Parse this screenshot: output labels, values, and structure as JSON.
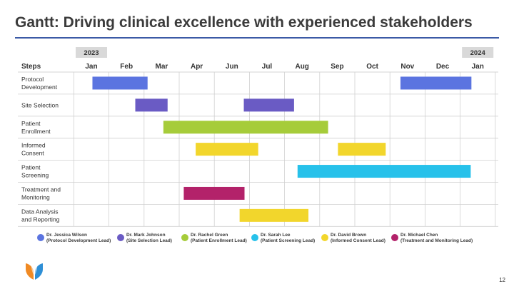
{
  "title": "Gantt: Driving clinical excellence with experienced stakeholders",
  "page_number": "12",
  "gantt": {
    "steps_header": "Steps",
    "year_labels": [
      {
        "label": "2023",
        "month_index": 0
      },
      {
        "label": "2024",
        "month_index": 11
      }
    ],
    "months": [
      "Jan",
      "Feb",
      "Mar",
      "Apr",
      "Jun",
      "Jul",
      "Aug",
      "Sep",
      "Oct",
      "Nov",
      "Dec",
      "Jan"
    ],
    "rows": [
      {
        "label": [
          "Protocol",
          "Development"
        ]
      },
      {
        "label": [
          "Site Selection"
        ]
      },
      {
        "label": [
          "Patient",
          "Enrollment"
        ]
      },
      {
        "label": [
          "Informed",
          "Consent"
        ]
      },
      {
        "label": [
          "Patient",
          "Screening"
        ]
      },
      {
        "label": [
          "Treatment and",
          "Monitoring"
        ]
      },
      {
        "label": [
          "Data Analysis",
          "and Reporting"
        ]
      }
    ],
    "bars": [
      {
        "row": 0,
        "start": 0.03,
        "end": 1.6,
        "owner": 0
      },
      {
        "row": 0,
        "start": 8.8,
        "end": 10.82,
        "owner": 0
      },
      {
        "row": 1,
        "start": 1.25,
        "end": 2.17,
        "owner": 1
      },
      {
        "row": 1,
        "start": 4.34,
        "end": 5.77,
        "owner": 1
      },
      {
        "row": 2,
        "start": 2.05,
        "end": 6.74,
        "owner": 2
      },
      {
        "row": 3,
        "start": 2.97,
        "end": 4.75,
        "owner": 4
      },
      {
        "row": 3,
        "start": 7.02,
        "end": 8.38,
        "owner": 4
      },
      {
        "row": 4,
        "start": 5.87,
        "end": 10.8,
        "owner": 3
      },
      {
        "row": 5,
        "start": 2.63,
        "end": 4.36,
        "owner": 5
      },
      {
        "row": 6,
        "start": 4.22,
        "end": 6.18,
        "owner": 4
      }
    ]
  },
  "legend": [
    {
      "name": "Dr. Jessica Wilson",
      "role": "(Protocol Development Lead)",
      "color": "#5b74e0"
    },
    {
      "name": "Dr. Mark Johnson",
      "role": "(Site Selection Lead)",
      "color": "#6a5bc4"
    },
    {
      "name": "Dr. Rachel Green",
      "role": "(Patient Enrollment Lead)",
      "color": "#a6cc3a"
    },
    {
      "name": "Dr. Sarah Lee",
      "role": "(Patient Screening Lead)",
      "color": "#27c1ea"
    },
    {
      "name": "Dr. David Brown",
      "role": "(Informed Consent Lead)",
      "color": "#f2d62c"
    },
    {
      "name": "Dr. Michael Chen",
      "role": "(Treatment and Monitoring Lead)",
      "color": "#b3226a"
    }
  ],
  "colors": {
    "title_rule": "#3b5aa6",
    "logo_left": "#f08a24",
    "logo_right": "#2e8fd6"
  }
}
